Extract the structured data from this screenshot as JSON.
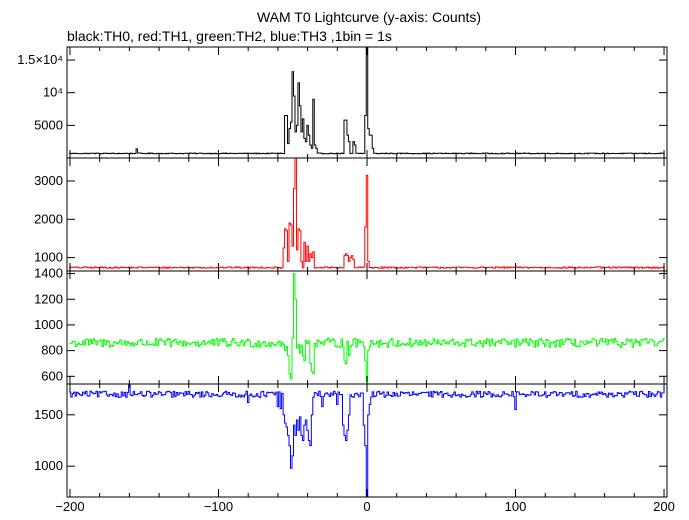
{
  "chart_data": {
    "type": "line",
    "title": "WAM T0 Lightcurve (y-axis: Counts)",
    "subtitle": "black:TH0, red:TH1, green:TH2, blue:TH3 ,1bin = 1s",
    "xlabel": "",
    "xlim": [
      -202,
      202
    ],
    "x_ticks": [
      -200,
      -100,
      0,
      100,
      200
    ],
    "x_tick_labels": [
      "−200",
      "−100",
      "0",
      "100",
      "200"
    ],
    "grid": false,
    "legend": "subtitle",
    "panels": [
      {
        "name": "TH0",
        "color": "#000000",
        "ylim": [
          0,
          17000
        ],
        "y_ticks": [
          5000,
          10000,
          15000
        ],
        "y_tick_labels": [
          "5000",
          "10⁴",
          "1.5×10⁴"
        ],
        "baseline": 700,
        "noise": 60,
        "features": [
          [
            -155,
            1400
          ],
          [
            -55,
            6500
          ],
          [
            -54,
            6500
          ],
          [
            -53,
            2200
          ],
          [
            -52,
            4500
          ],
          [
            -51,
            5500
          ],
          [
            -50,
            13200
          ],
          [
            -49,
            9500
          ],
          [
            -48,
            4000
          ],
          [
            -47,
            5000
          ],
          [
            -46,
            11500
          ],
          [
            -45,
            8000
          ],
          [
            -44,
            4000
          ],
          [
            -43,
            6000
          ],
          [
            -42,
            3000
          ],
          [
            -41,
            2500
          ],
          [
            -40,
            5000
          ],
          [
            -39,
            3500
          ],
          [
            -38,
            2000
          ],
          [
            -37,
            1500
          ],
          [
            -36,
            9000
          ],
          [
            -35,
            2000
          ],
          [
            -34,
            1500
          ],
          [
            -15,
            5800
          ],
          [
            -14,
            5800
          ],
          [
            -13,
            3500
          ],
          [
            -12,
            2500
          ],
          [
            -9,
            2500
          ],
          [
            -8,
            2000
          ],
          [
            -1,
            6500
          ],
          [
            0,
            17000
          ],
          [
            1,
            4500
          ],
          [
            2,
            3500
          ],
          [
            3,
            3500
          ],
          [
            4,
            1500
          ]
        ]
      },
      {
        "name": "TH1",
        "color": "#ff0000",
        "ylim": [
          650,
          3600
        ],
        "y_ticks": [
          1000,
          2000,
          3000
        ],
        "y_tick_labels": [
          "1000",
          "2000",
          "3000"
        ],
        "baseline": 740,
        "noise": 18,
        "features": [
          [
            -56,
            1250
          ],
          [
            -55,
            1750
          ],
          [
            -54,
            1700
          ],
          [
            -53,
            900
          ],
          [
            -52,
            1900
          ],
          [
            -51,
            1850
          ],
          [
            -50,
            1300
          ],
          [
            -49,
            2800
          ],
          [
            -48,
            3600
          ],
          [
            -47,
            1200
          ],
          [
            -46,
            1750
          ],
          [
            -45,
            1700
          ],
          [
            -44,
            900
          ],
          [
            -42,
            1400
          ],
          [
            -41,
            900
          ],
          [
            -40,
            1300
          ],
          [
            -39,
            900
          ],
          [
            -38,
            1100
          ],
          [
            -37,
            1000
          ],
          [
            -36,
            1150
          ],
          [
            -15,
            1050
          ],
          [
            -14,
            1100
          ],
          [
            -13,
            1050
          ],
          [
            -12,
            900
          ],
          [
            -11,
            1000
          ],
          [
            -10,
            1050
          ],
          [
            -9,
            950
          ],
          [
            -1,
            1800
          ],
          [
            0,
            3150
          ],
          [
            1,
            900
          ]
        ]
      },
      {
        "name": "TH2",
        "color": "#00ff00",
        "ylim": [
          540,
          1420
        ],
        "y_ticks": [
          600,
          800,
          1000,
          1200,
          1400
        ],
        "y_tick_labels": [
          "600",
          "800",
          "1000",
          "1200",
          "1400"
        ],
        "baseline": 860,
        "noise": 35,
        "features": [
          [
            -55,
            800
          ],
          [
            -53,
            760
          ],
          [
            -52,
            620
          ],
          [
            -51,
            580
          ],
          [
            -50,
            900
          ],
          [
            -49,
            1400
          ],
          [
            -48,
            1200
          ],
          [
            -47,
            820
          ],
          [
            -45,
            780
          ],
          [
            -43,
            760
          ],
          [
            -42,
            720
          ],
          [
            -38,
            700
          ],
          [
            -37,
            640
          ],
          [
            -36,
            620
          ],
          [
            -15,
            720
          ],
          [
            -14,
            700
          ],
          [
            -12,
            760
          ],
          [
            -1,
            720
          ],
          [
            0,
            560
          ],
          [
            1,
            800
          ]
        ]
      },
      {
        "name": "TH3",
        "color": "#0000ff",
        "ylim": [
          700,
          1800
        ],
        "y_ticks": [
          1000,
          1500
        ],
        "y_tick_labels": [
          "1000",
          "1500"
        ],
        "baseline": 1700,
        "noise": 30,
        "features": [
          [
            -160,
            1800
          ],
          [
            -80,
            1620
          ],
          [
            -60,
            1580
          ],
          [
            -58,
            1560
          ],
          [
            -56,
            1500
          ],
          [
            -55,
            1420
          ],
          [
            -54,
            1380
          ],
          [
            -53,
            1300
          ],
          [
            -52,
            1200
          ],
          [
            -51,
            980
          ],
          [
            -50,
            1100
          ],
          [
            -49,
            1400
          ],
          [
            -48,
            1300
          ],
          [
            -47,
            1450
          ],
          [
            -46,
            1350
          ],
          [
            -45,
            1480
          ],
          [
            -44,
            1300
          ],
          [
            -43,
            1250
          ],
          [
            -42,
            1400
          ],
          [
            -41,
            1450
          ],
          [
            -40,
            1350
          ],
          [
            -39,
            1250
          ],
          [
            -38,
            1200
          ],
          [
            -37,
            1500
          ],
          [
            -30,
            1580
          ],
          [
            -20,
            1600
          ],
          [
            -16,
            1400
          ],
          [
            -15,
            1300
          ],
          [
            -14,
            1250
          ],
          [
            -13,
            1350
          ],
          [
            -12,
            1500
          ],
          [
            -2,
            1400
          ],
          [
            -1,
            1200
          ],
          [
            0,
            700
          ],
          [
            1,
            1500
          ],
          [
            2,
            1600
          ],
          [
            100,
            1550
          ]
        ]
      }
    ]
  }
}
